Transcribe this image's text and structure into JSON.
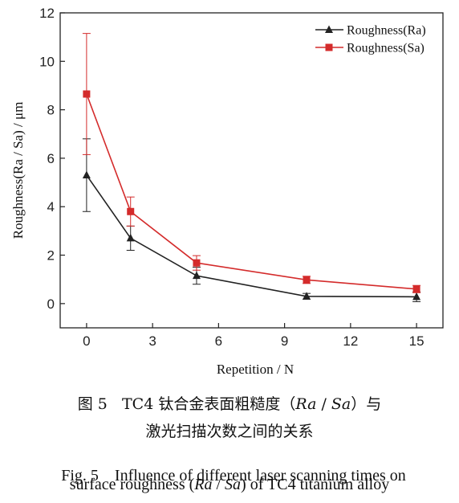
{
  "chart_data": {
    "type": "line",
    "title": "",
    "xlabel": "Repetition / N",
    "ylabel": "Roughness(Ra / Sa) / μm",
    "xlim": [
      -1.2,
      16.2
    ],
    "ylim": [
      -1,
      12
    ],
    "xticks": [
      0,
      3,
      6,
      9,
      12,
      15
    ],
    "yticks": [
      0,
      2,
      4,
      6,
      8,
      10,
      12
    ],
    "grid": false,
    "legend_position": "top-right",
    "series": [
      {
        "name": "Roughness(Ra)",
        "marker": "triangle",
        "color": "#222222",
        "x": [
          0,
          2,
          5,
          10,
          15
        ],
        "y": [
          5.3,
          2.7,
          1.15,
          0.3,
          0.28
        ],
        "err": [
          1.5,
          0.5,
          0.35,
          0.12,
          0.2
        ]
      },
      {
        "name": "Roughness(Sa)",
        "marker": "square",
        "color": "#d42b2b",
        "x": [
          0,
          2,
          5,
          10,
          15
        ],
        "y": [
          8.65,
          3.8,
          1.68,
          0.98,
          0.6
        ],
        "err": [
          2.5,
          0.6,
          0.3,
          0.15,
          0.15
        ]
      }
    ]
  },
  "caption": {
    "cn_label": "图 5",
    "cn_text_1": "TC4 钛合金表面粗糙度（",
    "cn_ra": "Ra",
    "cn_slash": " / ",
    "cn_sa": "Sa",
    "cn_text_2": "）与",
    "cn_line2": "激光扫描次数之间的关系",
    "en_line1": "Fig. 5    Influence of different laser scanning times on",
    "en_line2_pre": "surface roughness (",
    "en_ra": "Ra",
    "en_slash": " / ",
    "en_sa": "Sa",
    "en_line2_post": ") of TC4 titanium alloy"
  }
}
